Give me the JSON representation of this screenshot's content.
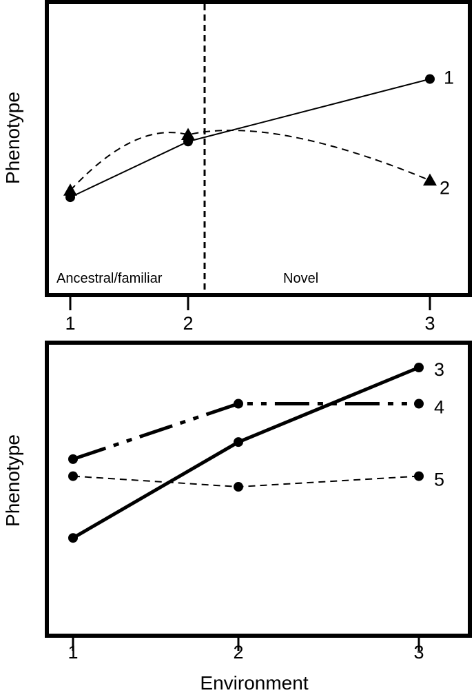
{
  "chart_data": [
    {
      "type": "line",
      "ylabel": "Phenotype",
      "xlabel": "",
      "x_ticks": [
        "1",
        "2",
        "3"
      ],
      "ylim": [
        0,
        10
      ],
      "regions": [
        {
          "label": "Ancestral/familiar",
          "x_range": [
            1,
            2.13
          ]
        },
        {
          "label": "Novel",
          "x_range": [
            2.13,
            3
          ]
        }
      ],
      "divider_x": 2.13,
      "series": [
        {
          "name": "1",
          "marker": "circle",
          "line_style": "solid",
          "curve": false,
          "points": [
            [
              1,
              2.2
            ],
            [
              2,
              5.5
            ],
            [
              3,
              9.2
            ]
          ]
        },
        {
          "name": "2",
          "marker": "triangle",
          "line_style": "dashed",
          "curve": true,
          "points": [
            [
              1,
              2.6
            ],
            [
              2,
              5.9
            ],
            [
              3,
              3.2
            ]
          ]
        }
      ]
    },
    {
      "type": "line",
      "ylabel": "Phenotype",
      "xlabel": "Environment",
      "x_ticks": [
        "1",
        "2",
        "3"
      ],
      "ylim": [
        0,
        10
      ],
      "series": [
        {
          "name": "3",
          "marker": "circle",
          "line_style": "solid-thick",
          "points": [
            [
              1,
              2.0
            ],
            [
              2,
              6.5
            ],
            [
              3,
              10.0
            ]
          ]
        },
        {
          "name": "4",
          "marker": "circle",
          "line_style": "dash-dot-dot",
          "points": [
            [
              1,
              5.7
            ],
            [
              2,
              8.3
            ],
            [
              3,
              8.3
            ]
          ]
        },
        {
          "name": "5",
          "marker": "circle",
          "line_style": "dashed",
          "points": [
            [
              1,
              4.9
            ],
            [
              2,
              4.4
            ],
            [
              3,
              4.9
            ]
          ]
        }
      ]
    }
  ]
}
